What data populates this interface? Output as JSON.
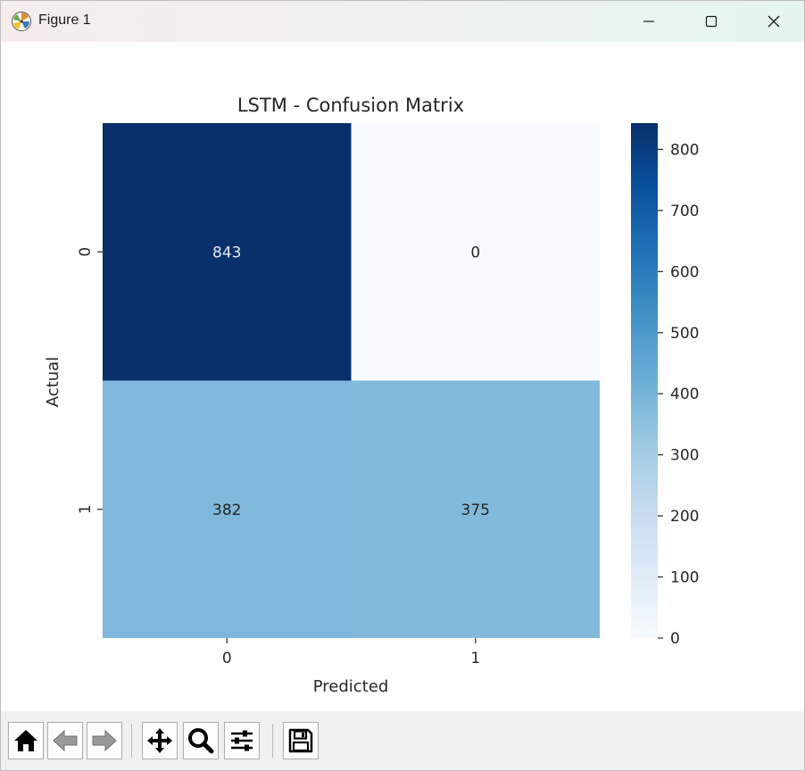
{
  "window": {
    "title": "Figure 1"
  },
  "colors": {
    "cmap_low": "#f7fbff",
    "cmap_high": "#08306b",
    "dark_text": "#262626",
    "light_text": "#eaeaf2"
  },
  "icons": {
    "app": "matplotlib-icon",
    "minimize": "minimize-icon",
    "maximize": "maximize-icon",
    "close": "close-icon"
  },
  "toolbar": {
    "buttons": [
      {
        "name": "home-icon"
      },
      {
        "name": "back-arrow-icon"
      },
      {
        "name": "forward-arrow-icon"
      },
      {
        "name": "pan-icon"
      },
      {
        "name": "zoom-icon"
      },
      {
        "name": "configure-subplots-icon"
      },
      {
        "name": "save-icon"
      }
    ]
  },
  "chart_data": {
    "type": "heatmap",
    "title": "LSTM - Confusion Matrix",
    "xlabel": "Predicted",
    "ylabel": "Actual",
    "x_categories": [
      "0",
      "1"
    ],
    "y_categories": [
      "0",
      "1"
    ],
    "values": [
      [
        843,
        0
      ],
      [
        382,
        375
      ]
    ],
    "colorbar": {
      "range": [
        0,
        843
      ],
      "ticks": [
        0,
        100,
        200,
        300,
        400,
        500,
        600,
        700,
        800
      ]
    },
    "colormap": "Blues",
    "annotations": true,
    "grid": false
  }
}
